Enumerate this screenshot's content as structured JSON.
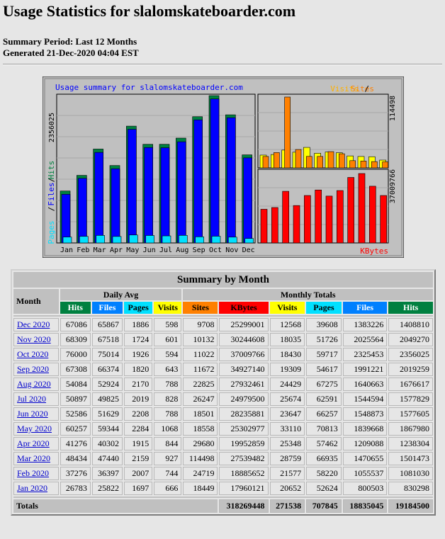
{
  "header": {
    "title": "Usage Statistics for slalomskateboarder.com",
    "period": "Summary Period: Last 12 Months",
    "generated": "Generated 21-Dec-2020 04:04 EST"
  },
  "chart_data": {
    "type": "bar",
    "title": "Usage summary for slalomskateboarder.com",
    "categories": [
      "Jan",
      "Feb",
      "Mar",
      "Apr",
      "May",
      "Jun",
      "Jul",
      "Aug",
      "Sep",
      "Oct",
      "Nov",
      "Dec"
    ],
    "left_axis_max_label": "2356025",
    "left_axis_label_parts": [
      "Pages",
      "Files",
      "Hits"
    ],
    "legend_top": [
      "Visits",
      "Sites"
    ],
    "right_top_max_label": "114498",
    "right_bottom_max_label": "37009766",
    "right_bottom_label": "KBytes",
    "series": [
      {
        "name": "Hits",
        "color": "#008040",
        "values": [
          830298,
          1081030,
          1501473,
          1238304,
          1867980,
          1577605,
          1577829,
          1676617,
          2019259,
          2356025,
          2049270,
          1408810
        ]
      },
      {
        "name": "Files",
        "color": "#0000ff",
        "values": [
          800503,
          1055537,
          1470655,
          1209088,
          1839668,
          1548873,
          1544594,
          1640663,
          1991221,
          2325453,
          2025564,
          1383226
        ]
      },
      {
        "name": "Pages",
        "color": "#00e0ff",
        "values": [
          52624,
          58220,
          66935,
          57462,
          70813,
          66257,
          62591,
          67275,
          54617,
          59717,
          51726,
          39608
        ]
      },
      {
        "name": "Visits",
        "color": "#ffff00",
        "values": [
          20652,
          21577,
          28759,
          25348,
          33110,
          23647,
          25674,
          24429,
          19309,
          18430,
          18035,
          12568
        ]
      },
      {
        "name": "Sites",
        "color": "#ff8000",
        "values": [
          18449,
          24719,
          114498,
          29680,
          18558,
          18501,
          26247,
          22825,
          11672,
          11022,
          10132,
          9708
        ]
      },
      {
        "name": "KBytes",
        "color": "#ff0000",
        "values": [
          17960121,
          18885652,
          27539482,
          19952859,
          25302977,
          28235881,
          24979500,
          27932461,
          34927140,
          37009766,
          30244608,
          25299001
        ]
      }
    ]
  },
  "table": {
    "caption": "Summary by Month",
    "month_label": "Month",
    "daily_avg_label": "Daily Avg",
    "monthly_totals_label": "Monthly Totals",
    "cols_daily": [
      "Hits",
      "Files",
      "Pages",
      "Visits"
    ],
    "cols_monthly": [
      "Sites",
      "KBytes",
      "Visits",
      "Pages",
      "Files",
      "Hits"
    ],
    "rows": [
      {
        "month": "Dec 2020",
        "v": [
          "67086",
          "65867",
          "1886",
          "598",
          "9708",
          "25299001",
          "12568",
          "39608",
          "1383226",
          "1408810"
        ]
      },
      {
        "month": "Nov 2020",
        "v": [
          "68309",
          "67518",
          "1724",
          "601",
          "10132",
          "30244608",
          "18035",
          "51726",
          "2025564",
          "2049270"
        ]
      },
      {
        "month": "Oct 2020",
        "v": [
          "76000",
          "75014",
          "1926",
          "594",
          "11022",
          "37009766",
          "18430",
          "59717",
          "2325453",
          "2356025"
        ]
      },
      {
        "month": "Sep 2020",
        "v": [
          "67308",
          "66374",
          "1820",
          "643",
          "11672",
          "34927140",
          "19309",
          "54617",
          "1991221",
          "2019259"
        ]
      },
      {
        "month": "Aug 2020",
        "v": [
          "54084",
          "52924",
          "2170",
          "788",
          "22825",
          "27932461",
          "24429",
          "67275",
          "1640663",
          "1676617"
        ]
      },
      {
        "month": "Jul 2020",
        "v": [
          "50897",
          "49825",
          "2019",
          "828",
          "26247",
          "24979500",
          "25674",
          "62591",
          "1544594",
          "1577829"
        ]
      },
      {
        "month": "Jun 2020",
        "v": [
          "52586",
          "51629",
          "2208",
          "788",
          "18501",
          "28235881",
          "23647",
          "66257",
          "1548873",
          "1577605"
        ]
      },
      {
        "month": "May 2020",
        "v": [
          "60257",
          "59344",
          "2284",
          "1068",
          "18558",
          "25302977",
          "33110",
          "70813",
          "1839668",
          "1867980"
        ]
      },
      {
        "month": "Apr 2020",
        "v": [
          "41276",
          "40302",
          "1915",
          "844",
          "29680",
          "19952859",
          "25348",
          "57462",
          "1209088",
          "1238304"
        ]
      },
      {
        "month": "Mar 2020",
        "v": [
          "48434",
          "47440",
          "2159",
          "927",
          "114498",
          "27539482",
          "28759",
          "66935",
          "1470655",
          "1501473"
        ]
      },
      {
        "month": "Feb 2020",
        "v": [
          "37276",
          "36397",
          "2007",
          "744",
          "24719",
          "18885652",
          "21577",
          "58220",
          "1055537",
          "1081030"
        ]
      },
      {
        "month": "Jan 2020",
        "v": [
          "26783",
          "25822",
          "1697",
          "666",
          "18449",
          "17960121",
          "20652",
          "52624",
          "800503",
          "830298"
        ]
      }
    ],
    "totals_label": "Totals",
    "totals": [
      "318269448",
      "271538",
      "707845",
      "18835045",
      "19184500"
    ]
  }
}
